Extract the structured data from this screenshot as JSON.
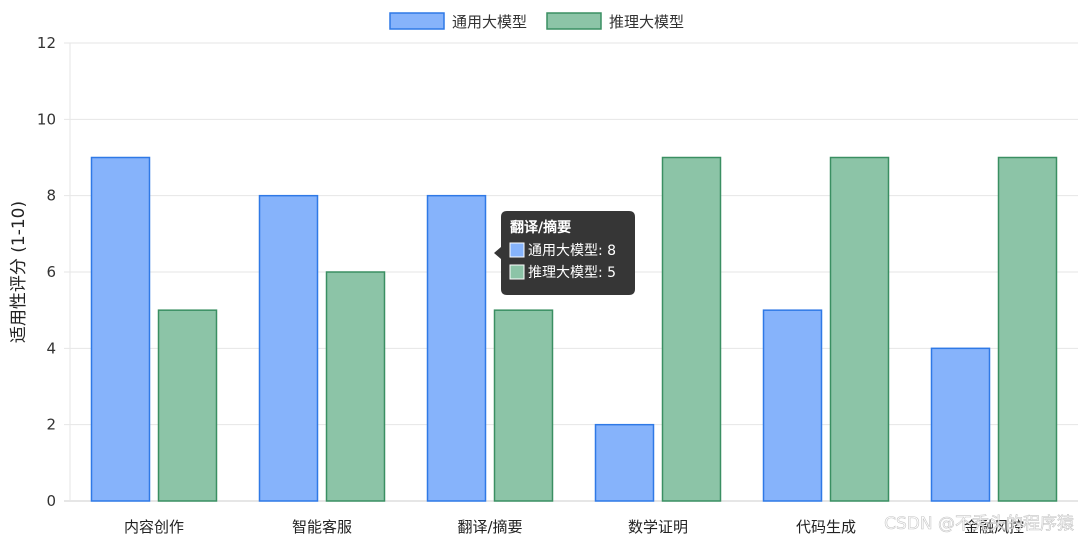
{
  "chart_data": {
    "type": "bar",
    "categories": [
      "内容创作",
      "智能客服",
      "翻译/摘要",
      "数学证明",
      "代码生成",
      "金融风控"
    ],
    "series": [
      {
        "name": "通用大模型",
        "values": [
          9,
          8,
          8,
          2,
          5,
          4
        ],
        "fill": "#86b3fb",
        "stroke": "#2f79e6"
      },
      {
        "name": "推理大模型",
        "values": [
          5,
          6,
          5,
          9,
          9,
          9
        ],
        "fill": "#8cc4a7",
        "stroke": "#3a8f62"
      }
    ],
    "ylabel": "适用性评分 (1-10)",
    "xlabel": "",
    "ylim": [
      0,
      12
    ],
    "yticks": [
      0,
      2,
      4,
      6,
      8,
      10,
      12
    ],
    "grid": true,
    "legend": "top-center",
    "tooltip": {
      "title": "翻译/摘要",
      "lines": [
        "通用大模型: 8",
        "推理大模型: 5"
      ]
    }
  },
  "watermark": "CSDN @不秃头的程序猿",
  "colors": {
    "grid": "#e6e6e6",
    "axis": "#cccccc",
    "tooltip_bg": "#2b2b2b"
  }
}
